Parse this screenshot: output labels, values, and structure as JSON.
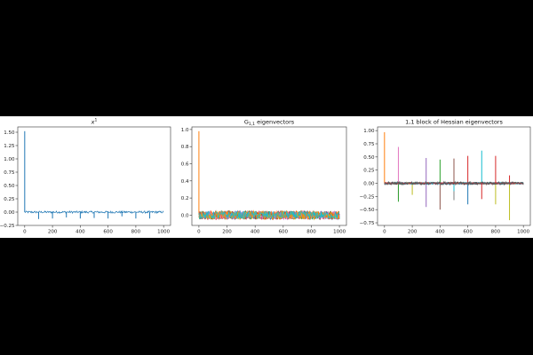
{
  "chart_data": [
    {
      "type": "line",
      "title": "x",
      "title_superscript": "1",
      "xlim": [
        -50,
        1050
      ],
      "ylim": [
        -0.25,
        1.6
      ],
      "xticks": [
        0,
        200,
        400,
        600,
        800,
        1000
      ],
      "yticks": [
        -0.25,
        0.0,
        0.25,
        0.5,
        0.75,
        1.0,
        1.25,
        1.5
      ],
      "ytick_labels": [
        "−0.25",
        "0.00",
        "0.25",
        "0.50",
        "0.75",
        "1.00",
        "1.25",
        "1.50"
      ],
      "series": [
        {
          "color": "#1f77b4",
          "baseline": 0.0,
          "noise": 0.02,
          "spikes": [
            {
              "x": 0,
              "y": 1.52
            },
            {
              "x": 100,
              "y": -0.13
            },
            {
              "x": 200,
              "y": -0.12
            },
            {
              "x": 300,
              "y": -0.1
            },
            {
              "x": 400,
              "y": -0.12
            },
            {
              "x": 500,
              "y": -0.11
            },
            {
              "x": 600,
              "y": -0.12
            },
            {
              "x": 700,
              "y": -0.08
            },
            {
              "x": 800,
              "y": -0.12
            },
            {
              "x": 900,
              "y": -0.12
            }
          ]
        }
      ]
    },
    {
      "type": "line",
      "title": "G",
      "title_subscript": "1,1",
      "title_suffix": "eigenvectors",
      "xlim": [
        -50,
        1050
      ],
      "ylim": [
        -0.12,
        1.03
      ],
      "xticks": [
        0,
        200,
        400,
        600,
        800,
        1000
      ],
      "yticks": [
        0.0,
        0.2,
        0.4,
        0.6,
        0.8,
        1.0
      ],
      "ytick_labels": [
        "0.0",
        "0.2",
        "0.4",
        "0.6",
        "0.8",
        "1.0"
      ],
      "series": [
        {
          "color": "#1f77b4",
          "baseline": 0.0,
          "noise": 0.05
        },
        {
          "color": "#2ca02c",
          "baseline": 0.0,
          "noise": 0.05
        },
        {
          "color": "#d62728",
          "baseline": 0.0,
          "noise": 0.05
        },
        {
          "color": "#9467bd",
          "baseline": 0.0,
          "noise": 0.05
        },
        {
          "color": "#8c564b",
          "baseline": 0.0,
          "noise": 0.05
        },
        {
          "color": "#e377c2",
          "baseline": 0.0,
          "noise": 0.05
        },
        {
          "color": "#bcbd22",
          "baseline": 0.0,
          "noise": 0.05
        },
        {
          "color": "#ff7f0e",
          "baseline": 0.0,
          "noise": 0.05,
          "spikes": [
            {
              "x": 0,
              "y": 0.98
            }
          ]
        },
        {
          "color": "#17becf",
          "baseline": 0.0,
          "noise": 0.045
        }
      ]
    },
    {
      "type": "line",
      "title": "1,1 block of Hessian eigenvectors",
      "xlim": [
        -50,
        1050
      ],
      "ylim": [
        -0.8,
        1.07
      ],
      "xticks": [
        0,
        200,
        400,
        600,
        800,
        1000
      ],
      "yticks": [
        -0.75,
        -0.5,
        -0.25,
        0.0,
        0.25,
        0.5,
        0.75,
        1.0
      ],
      "ytick_labels": [
        "−0.75",
        "−0.50",
        "−0.25",
        "0.00",
        "0.25",
        "0.50",
        "0.75",
        "1.00"
      ],
      "series": [
        {
          "color": "#ff7f0e",
          "baseline": 0.0,
          "noise": 0.015,
          "spikes": [
            {
              "x": 0,
              "y": 0.97
            }
          ]
        },
        {
          "color": "#e377c2",
          "baseline": 0.0,
          "noise": 0.015,
          "spikes": [
            {
              "x": 100,
              "y": 0.69
            },
            {
              "x": 100,
              "y": -0.3
            }
          ]
        },
        {
          "color": "#2ca02c",
          "baseline": 0.0,
          "noise": 0.015,
          "spikes": [
            {
              "x": 100,
              "y": -0.35
            },
            {
              "x": 400,
              "y": 0.45
            }
          ]
        },
        {
          "color": "#9467bd",
          "baseline": 0.0,
          "noise": 0.015,
          "spikes": [
            {
              "x": 300,
              "y": 0.48
            },
            {
              "x": 300,
              "y": -0.45
            }
          ]
        },
        {
          "color": "#bcbd22",
          "baseline": 0.0,
          "noise": 0.015,
          "spikes": [
            {
              "x": 200,
              "y": -0.22
            },
            {
              "x": 800,
              "y": -0.4
            },
            {
              "x": 900,
              "y": -0.7
            }
          ]
        },
        {
          "color": "#8c564b",
          "baseline": 0.0,
          "noise": 0.015,
          "spikes": [
            {
              "x": 400,
              "y": -0.5
            },
            {
              "x": 500,
              "y": 0.47
            }
          ]
        },
        {
          "color": "#7f7f7f",
          "baseline": 0.0,
          "noise": 0.015,
          "spikes": [
            {
              "x": 500,
              "y": -0.32
            }
          ]
        },
        {
          "color": "#17becf",
          "baseline": 0.0,
          "noise": 0.02,
          "spikes": [
            {
              "x": 700,
              "y": 0.62
            },
            {
              "x": 500,
              "y": -0.15
            }
          ]
        },
        {
          "color": "#1f77b4",
          "baseline": 0.0,
          "noise": 0.015,
          "spikes": [
            {
              "x": 600,
              "y": -0.4
            }
          ]
        },
        {
          "color": "#d62728",
          "baseline": 0.0,
          "noise": 0.015,
          "spikes": [
            {
              "x": 600,
              "y": 0.52
            },
            {
              "x": 700,
              "y": -0.3
            },
            {
              "x": 800,
              "y": 0.52
            },
            {
              "x": 900,
              "y": 0.15
            }
          ]
        },
        {
          "color": "#555555",
          "baseline": 0.0,
          "noise": 0.03
        }
      ]
    }
  ]
}
